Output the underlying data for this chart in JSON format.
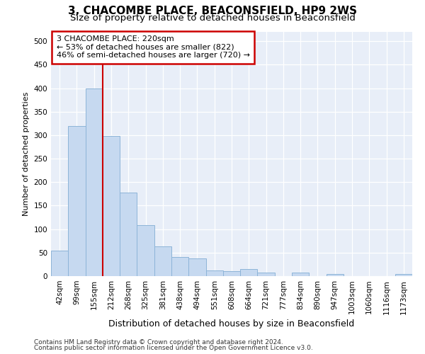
{
  "title_line1": "3, CHACOMBE PLACE, BEACONSFIELD, HP9 2WS",
  "title_line2": "Size of property relative to detached houses in Beaconsfield",
  "xlabel": "Distribution of detached houses by size in Beaconsfield",
  "ylabel": "Number of detached properties",
  "footer_line1": "Contains HM Land Registry data © Crown copyright and database right 2024.",
  "footer_line2": "Contains public sector information licensed under the Open Government Licence v3.0.",
  "bin_labels": [
    "42sqm",
    "99sqm",
    "155sqm",
    "212sqm",
    "268sqm",
    "325sqm",
    "381sqm",
    "438sqm",
    "494sqm",
    "551sqm",
    "608sqm",
    "664sqm",
    "721sqm",
    "777sqm",
    "834sqm",
    "890sqm",
    "947sqm",
    "1003sqm",
    "1060sqm",
    "1116sqm",
    "1173sqm"
  ],
  "bar_heights": [
    55,
    320,
    400,
    298,
    178,
    108,
    63,
    40,
    38,
    12,
    10,
    15,
    8,
    0,
    8,
    0,
    5,
    0,
    0,
    0,
    5
  ],
  "bar_color": "#c6d9f0",
  "bar_edge_color": "#8db4d8",
  "vline_x": 3,
  "vline_color": "#cc0000",
  "annotation_text": "3 CHACOMBE PLACE: 220sqm\n← 53% of detached houses are smaller (822)\n46% of semi-detached houses are larger (720) →",
  "annotation_box_facecolor": "#ffffff",
  "annotation_box_edgecolor": "#cc0000",
  "ylim": [
    0,
    520
  ],
  "yticks": [
    0,
    50,
    100,
    150,
    200,
    250,
    300,
    350,
    400,
    450,
    500
  ],
  "fig_background": "#ffffff",
  "plot_background": "#e8eef8",
  "grid_color": "#ffffff",
  "title_fontsize": 11,
  "subtitle_fontsize": 9.5,
  "xlabel_fontsize": 9,
  "ylabel_fontsize": 8,
  "tick_fontsize": 7.5,
  "annot_fontsize": 8,
  "footer_fontsize": 6.5
}
